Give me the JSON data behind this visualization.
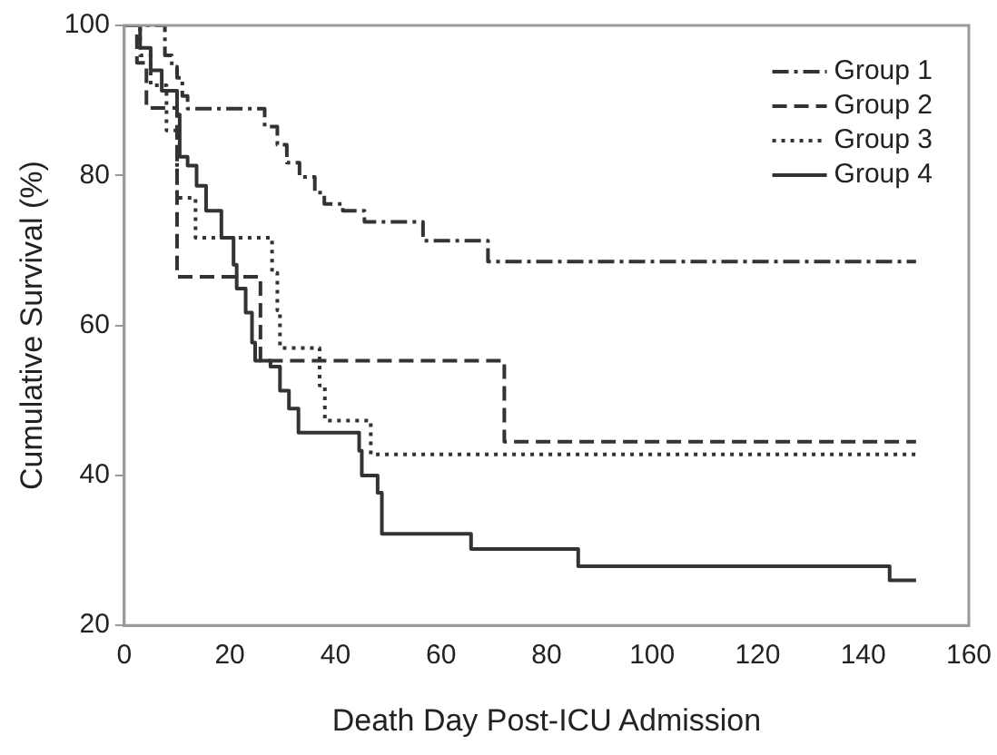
{
  "chart_data": {
    "type": "step",
    "xlabel": "Death Day Post-ICU Admission",
    "ylabel": "Cumulative Survival (%)",
    "xlim": [
      0,
      160
    ],
    "xticks": [
      0,
      20,
      40,
      60,
      80,
      100,
      120,
      140,
      160
    ],
    "ylim": [
      20,
      100
    ],
    "yticks": [
      20,
      40,
      60,
      80,
      100
    ],
    "grid": false,
    "legend": "top right",
    "marker": "none",
    "series": [
      {
        "name": "Group 1",
        "color": "#333333",
        "line_style": "dashdot",
        "x": [
          0,
          7.7,
          9,
          10,
          11,
          12,
          14,
          17,
          23.4,
          26.6,
          29,
          30.8,
          33.2,
          36.1,
          37.9,
          41.4,
          45.5,
          56.6,
          68.9,
          150
        ],
        "values": [
          100,
          96,
          94.5,
          93,
          90.6,
          88.9,
          88.9,
          88.9,
          88.9,
          86.5,
          84.1,
          81.7,
          79.8,
          77.7,
          76.2,
          75.3,
          73.8,
          71.3,
          68.5,
          68.5
        ]
      },
      {
        "name": "Group 2",
        "color": "#333333",
        "line_style": "dashed",
        "x": [
          0,
          2.4,
          4.2,
          10,
          25.8,
          72,
          150
        ],
        "values": [
          100,
          95,
          89,
          66.5,
          55.3,
          44.5,
          44.5
        ]
      },
      {
        "name": "Group 3",
        "color": "#333333",
        "line_style": "dotted",
        "x": [
          0,
          3,
          5,
          8,
          10,
          13.5,
          27,
          28,
          29,
          29.5,
          35.7,
          37,
          38,
          46.7,
          150
        ],
        "values": [
          100,
          96,
          92,
          86,
          77,
          71.7,
          71.7,
          67,
          62,
          57,
          57,
          52,
          47.3,
          42.8,
          42.8
        ]
      },
      {
        "name": "Group 4",
        "color": "#333333",
        "line_style": "solid",
        "x": [
          0,
          3,
          5,
          7.1,
          10,
          10.5,
          12,
          13.7,
          15.5,
          18.4,
          20.7,
          21.3,
          23,
          24.2,
          24.8,
          27.7,
          29.5,
          31.2,
          33,
          42.5,
          44.5,
          45,
          48,
          48.8,
          65.7,
          86,
          145,
          150
        ],
        "values": [
          100,
          97,
          94,
          91.3,
          88.1,
          82.5,
          81.3,
          78.6,
          75.3,
          71.7,
          68.1,
          64.9,
          61.7,
          57.7,
          55.3,
          54.5,
          51.3,
          48.9,
          45.7,
          45.7,
          43.3,
          40,
          37.7,
          32.2,
          30.2,
          27.9,
          26,
          26
        ]
      }
    ]
  }
}
